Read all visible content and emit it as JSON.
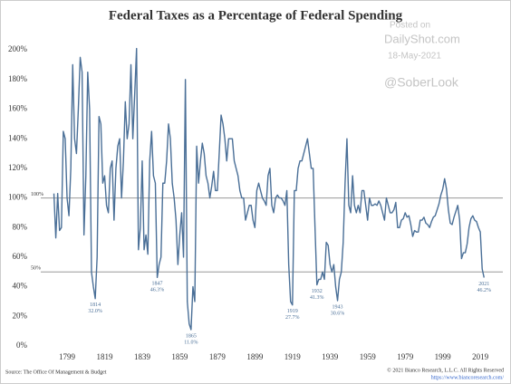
{
  "chart_data": {
    "type": "line",
    "title": "Federal Taxes as a Percentage of Federal Spending",
    "watermark": [
      "Posted on",
      "DailyShot.com",
      "18-May-2021",
      "@SoberLook"
    ],
    "source": "Source: The Office Of Management & Budget",
    "copyright": "© 2021 Bianco Research, L.L.C. All Rights Reserved",
    "url": "https://www.biancoresearch.com/",
    "color": "#4a6f97",
    "x": [
      1792,
      1793,
      1794,
      1795,
      1796,
      1797,
      1798,
      1799,
      1800,
      1801,
      1802,
      1803,
      1804,
      1805,
      1806,
      1807,
      1808,
      1809,
      1810,
      1811,
      1812,
      1813,
      1814,
      1815,
      1816,
      1817,
      1818,
      1819,
      1820,
      1821,
      1822,
      1823,
      1824,
      1825,
      1826,
      1827,
      1828,
      1829,
      1830,
      1831,
      1832,
      1833,
      1834,
      1835,
      1836,
      1837,
      1838,
      1839,
      1840,
      1841,
      1842,
      1843,
      1844,
      1845,
      1846,
      1847,
      1848,
      1849,
      1850,
      1851,
      1852,
      1853,
      1854,
      1855,
      1856,
      1857,
      1858,
      1859,
      1860,
      1861,
      1862,
      1863,
      1864,
      1865,
      1866,
      1867,
      1868,
      1869,
      1870,
      1871,
      1872,
      1873,
      1874,
      1875,
      1876,
      1877,
      1878,
      1879,
      1880,
      1881,
      1882,
      1883,
      1884,
      1885,
      1886,
      1887,
      1888,
      1889,
      1890,
      1891,
      1892,
      1893,
      1894,
      1895,
      1896,
      1897,
      1898,
      1899,
      1900,
      1901,
      1902,
      1903,
      1904,
      1905,
      1906,
      1907,
      1908,
      1909,
      1910,
      1911,
      1912,
      1913,
      1914,
      1915,
      1916,
      1917,
      1918,
      1919,
      1920,
      1921,
      1922,
      1923,
      1924,
      1925,
      1926,
      1927,
      1928,
      1929,
      1930,
      1931,
      1932,
      1933,
      1934,
      1935,
      1936,
      1937,
      1938,
      1939,
      1940,
      1941,
      1942,
      1943,
      1944,
      1945,
      1946,
      1947,
      1948,
      1949,
      1950,
      1951,
      1952,
      1953,
      1954,
      1955,
      1956,
      1957,
      1958,
      1959,
      1960,
      1961,
      1962,
      1963,
      1964,
      1965,
      1966,
      1967,
      1968,
      1969,
      1970,
      1971,
      1972,
      1973,
      1974,
      1975,
      1976,
      1977,
      1978,
      1979,
      1980,
      1981,
      1982,
      1983,
      1984,
      1985,
      1986,
      1987,
      1988,
      1989,
      1990,
      1991,
      1992,
      1993,
      1994,
      1995,
      1996,
      1997,
      1998,
      1999,
      2000,
      2001,
      2002,
      2003,
      2004,
      2005,
      2006,
      2007,
      2008,
      2009,
      2010,
      2011,
      2012,
      2013,
      2014,
      2015,
      2016,
      2017,
      2018,
      2019,
      2020,
      2021
    ],
    "values": [
      103,
      73,
      103,
      78,
      80,
      145,
      140,
      100,
      88,
      120,
      190,
      140,
      130,
      160,
      195,
      185,
      75,
      115,
      185,
      160,
      50,
      40,
      32.0,
      60,
      155,
      150,
      110,
      115,
      95,
      90,
      120,
      125,
      85,
      120,
      135,
      140,
      100,
      125,
      165,
      140,
      150,
      190,
      140,
      170,
      201,
      65,
      80,
      125,
      65,
      75,
      62,
      125,
      145,
      115,
      110,
      46.3,
      55,
      60,
      110,
      110,
      125,
      150,
      140,
      110,
      100,
      85,
      55,
      75,
      90,
      60,
      180,
      30,
      15,
      11.0,
      40,
      30,
      135,
      110,
      125,
      137,
      130,
      115,
      110,
      100,
      108,
      118,
      105,
      105,
      130,
      156,
      150,
      140,
      125,
      140,
      140,
      140,
      125,
      120,
      115,
      105,
      100,
      100,
      85,
      90,
      95,
      95,
      85,
      80,
      105,
      110,
      105,
      100,
      98,
      95,
      115,
      120,
      95,
      90,
      100,
      102,
      100,
      100,
      98,
      95,
      105,
      55,
      30,
      27.7,
      105,
      105,
      120,
      125,
      125,
      130,
      135,
      140,
      130,
      120,
      120,
      80,
      41.3,
      45,
      45,
      50,
      45,
      70,
      68,
      55,
      50,
      55,
      40,
      30.6,
      45,
      50,
      70,
      110,
      140,
      95,
      90,
      115,
      95,
      90,
      95,
      90,
      105,
      105,
      95,
      85,
      100,
      95,
      95,
      96,
      95,
      98,
      95,
      90,
      85,
      100,
      95,
      90,
      90,
      92,
      97,
      80,
      80,
      85,
      86,
      90,
      87,
      88,
      82,
      74,
      78,
      77,
      77,
      85,
      85,
      87,
      83,
      82,
      80,
      84,
      87,
      88,
      92,
      96,
      102,
      106,
      113,
      106,
      92,
      83,
      82,
      87,
      91,
      95,
      85,
      59,
      63,
      63,
      69,
      80,
      86,
      88,
      85,
      84,
      80,
      77,
      52,
      46.2
    ],
    "xlim": [
      1785,
      2031
    ],
    "xticks": [
      1799,
      1819,
      1839,
      1859,
      1879,
      1899,
      1919,
      1939,
      1959,
      1979,
      1999,
      2019
    ],
    "ylim": [
      0,
      205
    ],
    "yticks": [
      {
        "value": 0,
        "label": "0%"
      },
      {
        "value": 20,
        "label": "20%"
      },
      {
        "value": 40,
        "label": "40%"
      },
      {
        "value": 60,
        "label": "60%"
      },
      {
        "value": 80,
        "label": "80%"
      },
      {
        "value": 100,
        "label": "100%"
      },
      {
        "value": 120,
        "label": "120%"
      },
      {
        "value": 140,
        "label": "140%"
      },
      {
        "value": 160,
        "label": "160%"
      },
      {
        "value": 180,
        "label": "180%"
      },
      {
        "value": 200,
        "label": "200%"
      }
    ],
    "reference_lines": [
      {
        "value": 100,
        "label": "100%"
      },
      {
        "value": 50,
        "label": "50%"
      }
    ],
    "annotations": [
      {
        "year": 1814,
        "value": 32.0,
        "value_label": "32.0%"
      },
      {
        "year": 1847,
        "value": 46.3,
        "value_label": "46.3%"
      },
      {
        "year": 1865,
        "value": 11.0,
        "value_label": "11.0%"
      },
      {
        "year": 1919,
        "value": 27.7,
        "value_label": "27.7%"
      },
      {
        "year": 1932,
        "value": 41.3,
        "value_label": "41.3%"
      },
      {
        "year": 1943,
        "value": 30.6,
        "value_label": "30.6%"
      },
      {
        "year": 2021,
        "value": 46.2,
        "value_label": "46.2%"
      }
    ]
  }
}
